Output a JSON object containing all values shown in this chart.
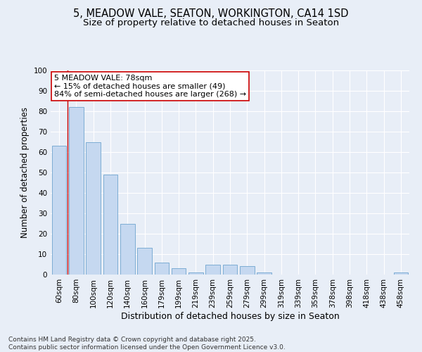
{
  "title": "5, MEADOW VALE, SEATON, WORKINGTON, CA14 1SD",
  "subtitle": "Size of property relative to detached houses in Seaton",
  "xlabel": "Distribution of detached houses by size in Seaton",
  "ylabel": "Number of detached properties",
  "categories": [
    "60sqm",
    "80sqm",
    "100sqm",
    "120sqm",
    "140sqm",
    "160sqm",
    "179sqm",
    "199sqm",
    "219sqm",
    "239sqm",
    "259sqm",
    "279sqm",
    "299sqm",
    "319sqm",
    "339sqm",
    "359sqm",
    "378sqm",
    "398sqm",
    "418sqm",
    "438sqm",
    "458sqm"
  ],
  "values": [
    63,
    82,
    65,
    49,
    25,
    13,
    6,
    3,
    1,
    5,
    5,
    4,
    1,
    0,
    0,
    0,
    0,
    0,
    0,
    0,
    1
  ],
  "bar_color": "#c5d8f0",
  "bar_edge_color": "#7dadd4",
  "background_color": "#e8eef7",
  "grid_color": "#ffffff",
  "vline_color": "#cc0000",
  "vline_x": 0.5,
  "annotation_text": "5 MEADOW VALE: 78sqm\n← 15% of detached houses are smaller (49)\n84% of semi-detached houses are larger (268) →",
  "annotation_box_facecolor": "#ffffff",
  "annotation_box_edgecolor": "#cc0000",
  "footer": "Contains HM Land Registry data © Crown copyright and database right 2025.\nContains public sector information licensed under the Open Government Licence v3.0.",
  "ylim": [
    0,
    100
  ],
  "yticks": [
    0,
    10,
    20,
    30,
    40,
    50,
    60,
    70,
    80,
    90,
    100
  ],
  "title_fontsize": 10.5,
  "subtitle_fontsize": 9.5,
  "xlabel_fontsize": 9,
  "ylabel_fontsize": 8.5,
  "tick_fontsize": 7.5,
  "annot_fontsize": 8,
  "footer_fontsize": 6.5
}
